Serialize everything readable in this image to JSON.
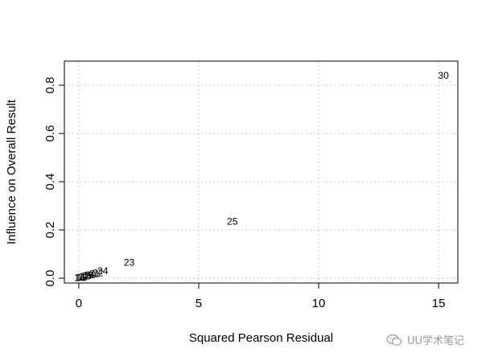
{
  "chart_data": {
    "type": "scatter",
    "title": "",
    "xlabel": "Squared Pearson Residual",
    "ylabel": "Influence on Overall Result",
    "xlim": [
      -0.6,
      15.8
    ],
    "ylim": [
      -0.02,
      0.9
    ],
    "xticks": [
      0,
      5,
      10,
      15
    ],
    "yticks": [
      0.0,
      0.2,
      0.4,
      0.6,
      0.8
    ],
    "xtick_labels": [
      "0",
      "5",
      "10",
      "15"
    ],
    "ytick_labels": [
      "0.0",
      "0.2",
      "0.4",
      "0.6",
      "0.8"
    ],
    "grid": true,
    "points": [
      {
        "label": "30",
        "x": 15.2,
        "y": 0.84
      },
      {
        "label": "25",
        "x": 6.4,
        "y": 0.235
      },
      {
        "label": "23",
        "x": 2.1,
        "y": 0.065
      },
      {
        "label": "24",
        "x": 1.0,
        "y": 0.03
      },
      {
        "label": "22",
        "x": 0.8,
        "y": 0.022
      },
      {
        "label": "21",
        "x": 0.65,
        "y": 0.018
      },
      {
        "label": "20",
        "x": 0.5,
        "y": 0.014
      },
      {
        "label": "19",
        "x": 0.4,
        "y": 0.011
      },
      {
        "label": "18",
        "x": 0.3,
        "y": 0.008
      },
      {
        "label": "17",
        "x": 0.22,
        "y": 0.006
      },
      {
        "label": "16",
        "x": 0.15,
        "y": 0.004
      },
      {
        "label": "15",
        "x": 0.08,
        "y": 0.002
      },
      {
        "label": "14",
        "x": 0.03,
        "y": 0.001
      }
    ]
  },
  "watermark": {
    "text": "UU学术笔记",
    "icon": "wechat-icon"
  }
}
